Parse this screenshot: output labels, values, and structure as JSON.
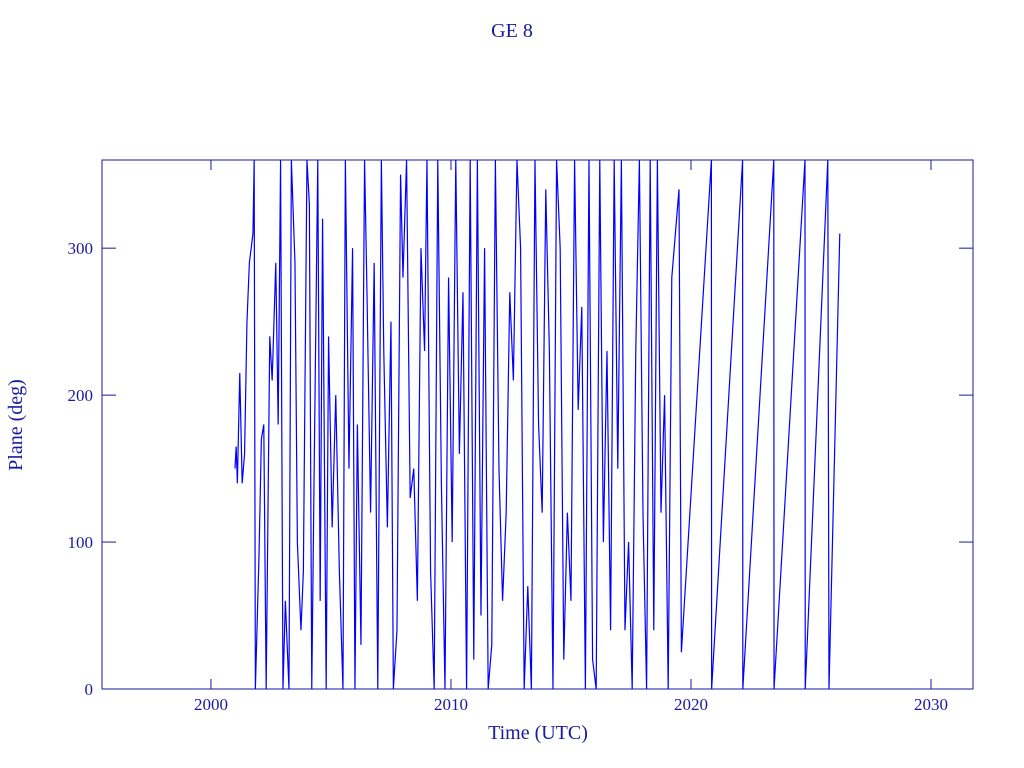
{
  "chart_data": {
    "type": "line",
    "title": "GE 8",
    "x_label": "Time (UTC)",
    "y_label": "Plane (deg)",
    "x": [
      2001.0,
      2001.05,
      2001.1,
      2001.2,
      2001.3,
      2001.4,
      2001.5,
      2001.6,
      2001.75,
      2001.8,
      2001.85,
      2002.0,
      2002.1,
      2002.2,
      2002.3,
      2002.45,
      2002.55,
      2002.7,
      2002.8,
      2002.9,
      2003.0,
      2003.1,
      2003.25,
      2003.35,
      2003.5,
      2003.6,
      2003.75,
      2003.85,
      2004.0,
      2004.1,
      2004.2,
      2004.3,
      2004.45,
      2004.55,
      2004.65,
      2004.8,
      2004.9,
      2005.05,
      2005.2,
      2005.35,
      2005.5,
      2005.6,
      2005.75,
      2005.9,
      2006.0,
      2006.1,
      2006.25,
      2006.4,
      2006.5,
      2006.65,
      2006.8,
      2006.95,
      2007.1,
      2007.2,
      2007.35,
      2007.5,
      2007.6,
      2007.75,
      2007.9,
      2008.0,
      2008.15,
      2008.3,
      2008.45,
      2008.6,
      2008.75,
      2008.9,
      2009.0,
      2009.15,
      2009.3,
      2009.45,
      2009.6,
      2009.75,
      2009.9,
      2010.05,
      2010.2,
      2010.35,
      2010.5,
      2010.65,
      2010.8,
      2010.95,
      2011.1,
      2011.25,
      2011.4,
      2011.55,
      2011.7,
      2011.85,
      2012.0,
      2012.15,
      2012.3,
      2012.45,
      2012.6,
      2012.75,
      2012.9,
      2013.05,
      2013.2,
      2013.35,
      2013.5,
      2013.65,
      2013.8,
      2013.95,
      2014.1,
      2014.25,
      2014.4,
      2014.55,
      2014.7,
      2014.85,
      2015.0,
      2015.15,
      2015.3,
      2015.45,
      2015.6,
      2015.75,
      2015.9,
      2016.05,
      2016.2,
      2016.35,
      2016.5,
      2016.65,
      2016.8,
      2016.95,
      2017.1,
      2017.25,
      2017.4,
      2017.55,
      2017.7,
      2017.85,
      2018.0,
      2018.15,
      2018.3,
      2018.45,
      2018.6,
      2018.75,
      2018.9,
      2019.05,
      2019.2,
      2019.35,
      2019.5,
      2019.6,
      2020.85,
      2020.86,
      2022.15,
      2022.16,
      2023.45,
      2023.46,
      2024.75,
      2024.76,
      2025.7,
      2025.75,
      2026.2
    ],
    "series": [
      {
        "color": "#0000ff",
        "values": [
          150,
          165,
          140,
          215,
          140,
          160,
          250,
          290,
          310,
          360,
          0,
          90,
          170,
          180,
          0,
          240,
          210,
          290,
          180,
          360,
          0,
          60,
          0,
          360,
          290,
          100,
          40,
          80,
          360,
          330,
          0,
          150,
          360,
          60,
          320,
          0,
          240,
          110,
          200,
          80,
          0,
          360,
          150,
          300,
          0,
          180,
          30,
          360,
          270,
          120,
          290,
          0,
          360,
          230,
          110,
          250,
          0,
          40,
          350,
          280,
          360,
          130,
          150,
          60,
          300,
          230,
          360,
          80,
          0,
          360,
          140,
          0,
          280,
          100,
          360,
          160,
          270,
          0,
          360,
          20,
          360,
          50,
          300,
          0,
          30,
          360,
          150,
          60,
          120,
          270,
          210,
          360,
          300,
          0,
          70,
          0,
          360,
          180,
          120,
          340,
          230,
          0,
          360,
          300,
          20,
          120,
          60,
          360,
          190,
          260,
          0,
          360,
          20,
          0,
          360,
          100,
          230,
          40,
          360,
          150,
          360,
          40,
          100,
          0,
          230,
          360,
          120,
          0,
          360,
          40,
          360,
          120,
          200,
          0,
          280,
          310,
          340,
          25,
          360,
          0,
          360,
          0,
          360,
          0,
          360,
          0,
          360,
          0,
          310
        ]
      }
    ],
    "xlim": [
      1995.46,
      2031.75
    ],
    "ylim": [
      0,
      360
    ],
    "xticks": [
      2000,
      2010,
      2020,
      2030
    ],
    "yticks": [
      0,
      100,
      200,
      300
    ]
  }
}
